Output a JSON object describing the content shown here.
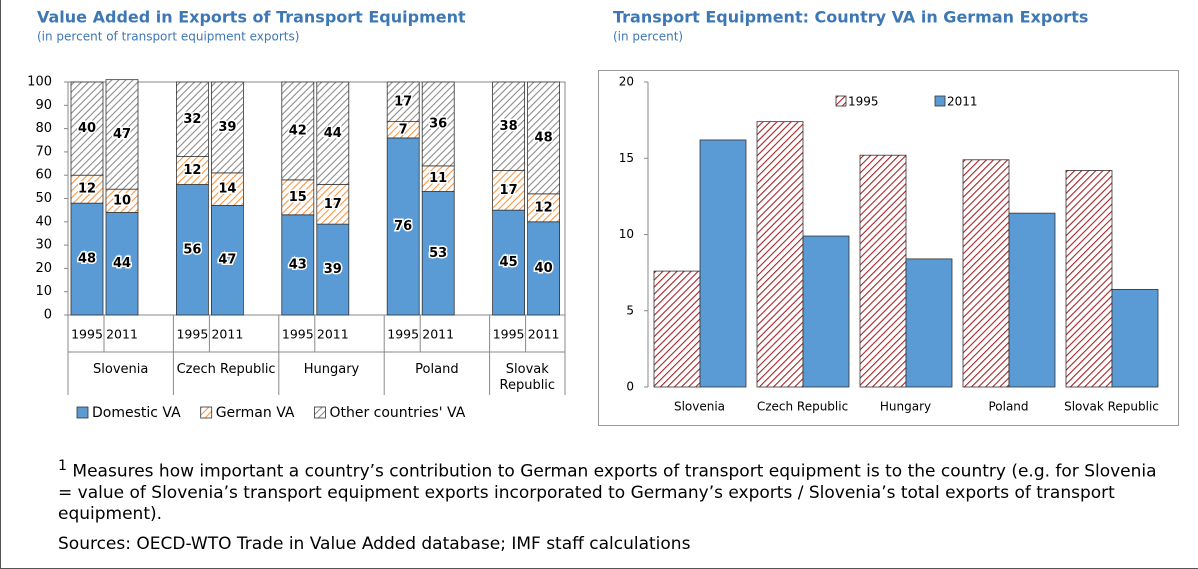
{
  "chart_data": [
    {
      "type": "stacked_bar",
      "title": "Value Added in Exports of Transport Equipment",
      "subtitle": "(in percent of transport equipment exports)",
      "categories": [
        "1995",
        "2011",
        "1995",
        "2011",
        "1995",
        "2011",
        "1995",
        "2011",
        "1995",
        "2011"
      ],
      "groups": [
        "Slovenia",
        "Czech Republic",
        "Hungary",
        "Poland",
        "Slovak Republic"
      ],
      "ylim": [
        0,
        100
      ],
      "yticks": [
        0,
        10,
        20,
        30,
        40,
        50,
        60,
        70,
        80,
        90,
        100
      ],
      "legend": "bottom",
      "series": [
        {
          "name": "Domestic VA",
          "color": "#5b9bd5",
          "hatch": false,
          "values": [
            48,
            44,
            56,
            47,
            43,
            39,
            76,
            53,
            45,
            40
          ]
        },
        {
          "name": "German VA",
          "color": "#f79646",
          "hatch": true,
          "values": [
            12,
            10,
            12,
            14,
            15,
            17,
            7,
            11,
            17,
            12
          ]
        },
        {
          "name": "Other countries' VA",
          "color": "#8c8c8c",
          "hatch": true,
          "values": [
            40,
            47,
            32,
            39,
            42,
            44,
            17,
            36,
            38,
            48
          ]
        }
      ]
    },
    {
      "type": "bar",
      "title": "Transport Equipment: Country VA in German Exports",
      "subtitle": "(in percent)",
      "categories": [
        "Slovenia",
        "Czech Republic",
        "Hungary",
        "Poland",
        "Slovak Republic"
      ],
      "ylim": [
        0,
        20
      ],
      "yticks": [
        0,
        5,
        10,
        15,
        20
      ],
      "legend": "top",
      "series": [
        {
          "name": "1995",
          "color": "#a3262a",
          "hatch": true,
          "values": [
            7.6,
            17.4,
            15.2,
            14.9,
            14.2
          ]
        },
        {
          "name": "2011",
          "color": "#5b9bd5",
          "hatch": false,
          "values": [
            16.2,
            9.9,
            8.4,
            11.4,
            6.4
          ]
        }
      ]
    }
  ],
  "notes": {
    "marker": "1",
    "footnote": "Measures how important a country’s contribution to German exports of transport equipment is to the country (e.g. for Slovenia = value of Slovenia’s transport equipment exports incorporated to Germany’s exports / Slovenia’s total exports of transport equipment).",
    "source": "Sources: OECD-WTO Trade in Value Added database; IMF staff calculations"
  }
}
